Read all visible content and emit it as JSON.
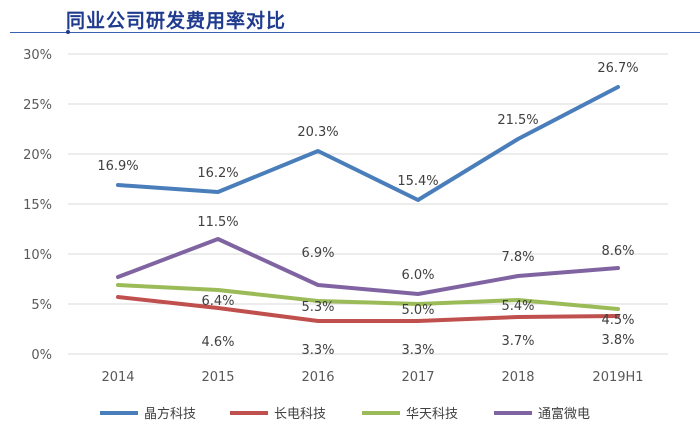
{
  "title": "同业公司研发费用率对比",
  "colors": {
    "title": "#1f3b8f",
    "grid": "#d9d9d9",
    "axis_text": "#595959"
  },
  "chart_data": {
    "type": "line",
    "x": [
      "2014",
      "2015",
      "2016",
      "2017",
      "2018",
      "2019H1"
    ],
    "ylim": [
      0,
      30
    ],
    "yticks": [
      "0%",
      "5%",
      "10%",
      "15%",
      "20%",
      "25%",
      "30%"
    ],
    "yunit": "%",
    "grid": "horizontal",
    "legend_position": "bottom",
    "series": [
      {
        "name": "晶方科技",
        "color": "#4a7ebb",
        "values": [
          16.9,
          16.2,
          20.3,
          15.4,
          21.5,
          26.7
        ],
        "labels": [
          "16.9%",
          "16.2%",
          "20.3%",
          "15.4%",
          "21.5%",
          "26.7%"
        ]
      },
      {
        "name": "长电科技",
        "color": "#c0504d",
        "values": [
          5.7,
          4.6,
          3.3,
          3.3,
          3.7,
          3.8
        ],
        "labels": [
          "",
          "4.6%",
          "3.3%",
          "3.3%",
          "3.7%",
          "3.8%"
        ]
      },
      {
        "name": "华天科技",
        "color": "#9bbb59",
        "values": [
          6.9,
          6.4,
          5.3,
          5.0,
          5.4,
          4.5
        ],
        "labels": [
          "",
          "6.4%",
          "5.3%",
          "5.0%",
          "5.4%",
          "4.5%"
        ]
      },
      {
        "name": "通富微电",
        "color": "#8064a2",
        "values": [
          7.7,
          11.5,
          6.9,
          6.0,
          7.8,
          8.6
        ],
        "labels": [
          "",
          "11.5%",
          "6.9%",
          "6.0%",
          "7.8%",
          "8.6%"
        ]
      }
    ]
  }
}
